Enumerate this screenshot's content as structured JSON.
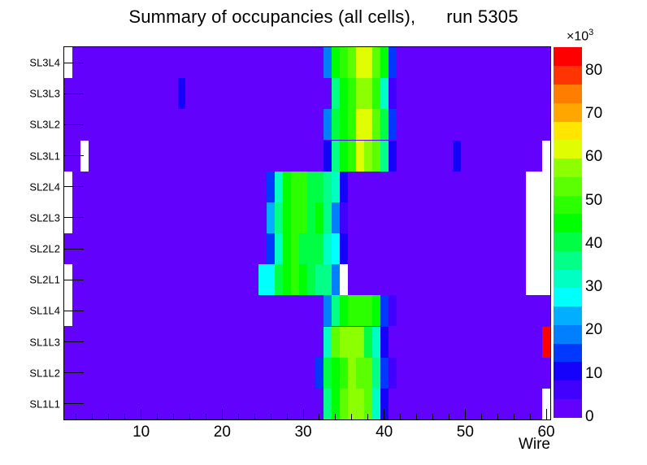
{
  "title": "Summary of occupancies (all cells),      run 5305",
  "chart_data": {
    "type": "heatmap",
    "title": "Summary of occupancies (all cells),      run 5305",
    "xlabel": "Wire",
    "x_range": [
      0.5,
      60.5
    ],
    "n_wires": 60,
    "x_major_ticks": [
      10,
      20,
      30,
      40,
      50,
      60
    ],
    "x_minor_tick_step_wires": 2,
    "rows_top_to_bottom": [
      "SL3L4",
      "SL3L3",
      "SL3L2",
      "SL3L1",
      "SL2L4",
      "SL2L3",
      "SL2L2",
      "SL2L1",
      "SL1L4",
      "SL1L3",
      "SL1L2",
      "SL1L1"
    ],
    "grid": false,
    "legend_position": "right-colorbar",
    "z_unit_multiplier_label": "×10",
    "z_unit_exponent": "3",
    "z_max_thousands": 85.4,
    "colorbar_ticks_thousands": [
      0,
      10,
      20,
      30,
      40,
      50,
      60,
      70,
      80
    ],
    "palette_ascending": [
      "#6202fd",
      "#4101fe",
      "#1402fb",
      "#0138fd",
      "#017ffe",
      "#02aeff",
      "#01fffd",
      "#00ffc2",
      "#03ff87",
      "#00fe44",
      "#00ff00",
      "#2bff00",
      "#5bff01",
      "#8cff00",
      "#e0fe01",
      "#fee600",
      "#ffa601",
      "#ff7d00",
      "#fe3502",
      "#ff0000"
    ],
    "background_palette_index": 0,
    "empty_cell_color": "#ffffff",
    "cell_runs_by_row": {
      "SL3L4": [
        [
          1,
          1,
          "white"
        ],
        [
          33,
          33,
          4
        ],
        [
          34,
          34,
          10
        ],
        [
          35,
          35,
          11
        ],
        [
          36,
          36,
          12
        ],
        [
          37,
          38,
          14
        ],
        [
          39,
          39,
          12
        ],
        [
          40,
          40,
          10
        ],
        [
          41,
          41,
          3
        ]
      ],
      "SL3L3": [
        [
          15,
          15,
          2
        ],
        [
          34,
          34,
          8
        ],
        [
          35,
          35,
          10
        ],
        [
          36,
          36,
          11
        ],
        [
          37,
          38,
          13
        ],
        [
          39,
          39,
          11
        ],
        [
          40,
          40,
          7
        ],
        [
          41,
          41,
          1
        ]
      ],
      "SL3L2": [
        [
          33,
          33,
          4
        ],
        [
          34,
          34,
          9
        ],
        [
          35,
          35,
          10
        ],
        [
          36,
          36,
          11
        ],
        [
          37,
          38,
          14
        ],
        [
          39,
          39,
          12
        ],
        [
          40,
          40,
          9
        ],
        [
          41,
          41,
          3
        ]
      ],
      "SL3L1": [
        [
          3,
          3,
          "white"
        ],
        [
          33,
          33,
          2
        ],
        [
          34,
          34,
          8
        ],
        [
          35,
          35,
          10
        ],
        [
          36,
          36,
          11
        ],
        [
          37,
          37,
          14
        ],
        [
          38,
          38,
          13
        ],
        [
          39,
          39,
          12
        ],
        [
          40,
          40,
          8
        ],
        [
          41,
          41,
          2
        ],
        [
          49,
          49,
          2
        ],
        [
          60,
          60,
          "white"
        ]
      ],
      "SL2L4": [
        [
          1,
          1,
          "white"
        ],
        [
          26,
          26,
          3
        ],
        [
          27,
          27,
          7
        ],
        [
          28,
          28,
          10
        ],
        [
          29,
          30,
          11
        ],
        [
          31,
          32,
          9
        ],
        [
          33,
          33,
          8
        ],
        [
          34,
          34,
          7
        ],
        [
          35,
          35,
          2
        ],
        [
          58,
          60,
          "white"
        ]
      ],
      "SL2L3": [
        [
          1,
          1,
          "white"
        ],
        [
          26,
          26,
          5
        ],
        [
          27,
          27,
          8
        ],
        [
          28,
          28,
          10
        ],
        [
          29,
          30,
          11
        ],
        [
          31,
          31,
          9
        ],
        [
          32,
          32,
          10
        ],
        [
          33,
          33,
          8
        ],
        [
          34,
          34,
          4
        ],
        [
          35,
          35,
          1
        ],
        [
          58,
          60,
          "white"
        ]
      ],
      "SL2L2": [
        [
          26,
          26,
          3
        ],
        [
          27,
          27,
          7
        ],
        [
          28,
          28,
          10
        ],
        [
          29,
          29,
          11
        ],
        [
          30,
          32,
          9
        ],
        [
          33,
          33,
          7
        ],
        [
          34,
          34,
          6
        ],
        [
          35,
          35,
          2
        ],
        [
          58,
          60,
          "white"
        ]
      ],
      "SL2L1": [
        [
          1,
          1,
          "white"
        ],
        [
          25,
          26,
          6
        ],
        [
          27,
          27,
          9
        ],
        [
          28,
          28,
          10
        ],
        [
          29,
          29,
          11
        ],
        [
          30,
          30,
          10
        ],
        [
          31,
          31,
          9
        ],
        [
          32,
          33,
          8
        ],
        [
          34,
          34,
          4
        ],
        [
          35,
          35,
          "white"
        ],
        [
          58,
          60,
          "white"
        ]
      ],
      "SL1L4": [
        [
          1,
          1,
          "white"
        ],
        [
          33,
          33,
          4
        ],
        [
          34,
          34,
          8
        ],
        [
          35,
          35,
          10
        ],
        [
          36,
          38,
          11
        ],
        [
          39,
          39,
          10
        ],
        [
          40,
          40,
          3
        ],
        [
          41,
          41,
          1
        ]
      ],
      "SL1L3": [
        [
          33,
          33,
          7
        ],
        [
          34,
          34,
          12
        ],
        [
          35,
          37,
          13
        ],
        [
          38,
          38,
          9
        ],
        [
          39,
          39,
          7
        ],
        [
          40,
          40,
          2
        ],
        [
          60,
          60,
          19
        ]
      ],
      "SL1L2": [
        [
          32,
          32,
          3
        ],
        [
          33,
          33,
          9
        ],
        [
          34,
          34,
          10
        ],
        [
          35,
          35,
          11
        ],
        [
          36,
          36,
          13
        ],
        [
          37,
          38,
          12
        ],
        [
          39,
          39,
          8
        ],
        [
          40,
          40,
          3
        ],
        [
          41,
          41,
          1
        ]
      ],
      "SL1L1": [
        [
          33,
          33,
          8
        ],
        [
          34,
          34,
          10
        ],
        [
          35,
          35,
          12
        ],
        [
          36,
          37,
          13
        ],
        [
          38,
          38,
          12
        ],
        [
          39,
          39,
          7
        ],
        [
          40,
          40,
          2
        ],
        [
          60,
          60,
          "white"
        ]
      ]
    },
    "notable_values": {
      "hot_cell": {
        "row": "SL1L3",
        "wire": 60,
        "approx_value": 84000,
        "color": "#ff0000"
      },
      "dead_regions": [
        {
          "rows": [
            "SL2L4",
            "SL2L3",
            "SL2L2",
            "SL2L1"
          ],
          "wires": [
            58,
            60
          ]
        },
        {
          "rows": [
            "SL3L1"
          ],
          "wires": [
            60,
            60
          ]
        },
        {
          "rows": [
            "SL1L1"
          ],
          "wires": [
            60,
            60
          ]
        },
        {
          "rows": [
            "SL3L4",
            "SL2L4",
            "SL2L3",
            "SL2L1",
            "SL1L4"
          ],
          "wires": [
            1,
            1
          ]
        },
        {
          "rows": [
            "SL3L1"
          ],
          "wires": [
            3,
            3
          ]
        },
        {
          "rows": [
            "SL2L1"
          ],
          "wires": [
            35,
            35
          ]
        }
      ]
    }
  }
}
